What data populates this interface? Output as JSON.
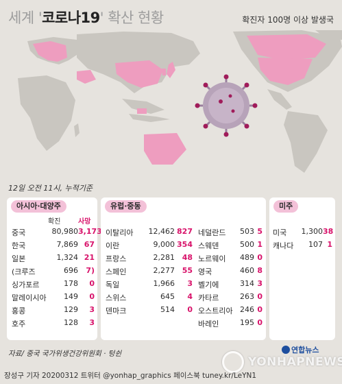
{
  "title": {
    "part_a": "세계 '",
    "part_b": "코로나19",
    "part_c": "' 확산 현황"
  },
  "subtitle": "확진자 100명 이상 발생국",
  "timestamp": "12일 오전 11시, 누적기준",
  "colors": {
    "background": "#e6e3de",
    "land": "#c9c6c0",
    "affected": "#ee9dbf",
    "header_pill": "#f3c1d8",
    "deaths_accent": "#d8126a"
  },
  "asia": {
    "header": "아시아·대양주",
    "col_confirmed": "확진",
    "col_deaths": "사망",
    "rows": [
      {
        "name": "중국",
        "confirmed": "80,980",
        "deaths": "3,173"
      },
      {
        "name": "한국",
        "confirmed": "7,869",
        "deaths": "67"
      },
      {
        "name": "일본",
        "confirmed": "1,324",
        "deaths": "21"
      },
      {
        "name": "(크루즈",
        "confirmed": "696",
        "deaths": "7)"
      },
      {
        "name": "싱가포르",
        "confirmed": "178",
        "deaths": "0"
      },
      {
        "name": "말레이시아",
        "confirmed": "149",
        "deaths": "0"
      },
      {
        "name": "홍콩",
        "confirmed": "129",
        "deaths": "3"
      },
      {
        "name": "호주",
        "confirmed": "128",
        "deaths": "3"
      }
    ]
  },
  "europe": {
    "header": "유럽·중동",
    "left_rows": [
      {
        "name": "이탈리아",
        "confirmed": "12,462",
        "deaths": "827"
      },
      {
        "name": "이란",
        "confirmed": "9,000",
        "deaths": "354"
      },
      {
        "name": "프랑스",
        "confirmed": "2,281",
        "deaths": "48"
      },
      {
        "name": "스페인",
        "confirmed": "2,277",
        "deaths": "55"
      },
      {
        "name": "독일",
        "confirmed": "1,966",
        "deaths": "3"
      },
      {
        "name": "스위스",
        "confirmed": "645",
        "deaths": "4"
      },
      {
        "name": "덴마크",
        "confirmed": "514",
        "deaths": "0"
      }
    ],
    "right_rows": [
      {
        "name": "네덜란드",
        "confirmed": "503",
        "deaths": "5"
      },
      {
        "name": "스웨덴",
        "confirmed": "500",
        "deaths": "1"
      },
      {
        "name": "노르웨이",
        "confirmed": "489",
        "deaths": "0"
      },
      {
        "name": "영국",
        "confirmed": "460",
        "deaths": "8"
      },
      {
        "name": "벨기에",
        "confirmed": "314",
        "deaths": "3"
      },
      {
        "name": "카타르",
        "confirmed": "263",
        "deaths": "0"
      },
      {
        "name": "오스트리아",
        "confirmed": "246",
        "deaths": "0"
      },
      {
        "name": "바레인",
        "confirmed": "195",
        "deaths": "0"
      }
    ]
  },
  "americas": {
    "header": "미주",
    "rows": [
      {
        "name": "미국",
        "confirmed": "1,300",
        "deaths": "38"
      },
      {
        "name": "캐나다",
        "confirmed": "107",
        "deaths": "1"
      }
    ]
  },
  "source": "자료/ 중국 국가위생건강위원회 · 텅쉰",
  "footer": "장성구 기자 20200312 트위터 @yonhap_graphics 페이스북 tuney.kr/LeYN1",
  "logo": "연합뉴스",
  "watermark": "YONHAPNEWS"
}
